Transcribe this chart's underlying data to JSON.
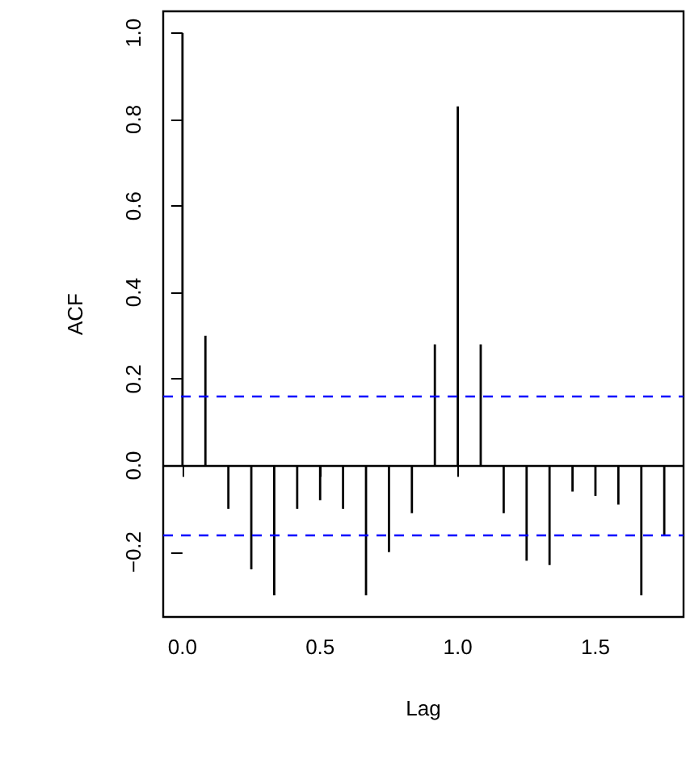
{
  "chart_data": {
    "type": "bar",
    "xlabel": "Lag",
    "ylabel": "ACF",
    "x": [
      0,
      0.0833,
      0.1667,
      0.25,
      0.3333,
      0.4167,
      0.5,
      0.5833,
      0.6667,
      0.75,
      0.8333,
      0.9167,
      1,
      1.0833,
      1.1667,
      1.25,
      1.3333,
      1.4167,
      1.5,
      1.5833,
      1.6667,
      1.75
    ],
    "values": [
      1,
      0.3,
      -0.1,
      -0.24,
      -0.3,
      -0.1,
      -0.08,
      -0.1,
      -0.3,
      -0.2,
      -0.11,
      0.28,
      0.83,
      0.28,
      -0.11,
      -0.22,
      -0.23,
      -0.06,
      -0.07,
      -0.09,
      -0.3,
      -0.16
    ],
    "color": "#000000",
    "xlim": [
      -0.07,
      1.82
    ],
    "xticks": [
      {
        "value": 0,
        "label": "0.0"
      },
      {
        "value": 0.5,
        "label": "0.5"
      },
      {
        "value": 1,
        "label": "1.0"
      },
      {
        "value": 1.5,
        "label": "1.5"
      }
    ],
    "ylim": [
      -0.35,
      1.05
    ],
    "yticks": [
      {
        "value": -0.2,
        "label": "−0.2"
      },
      {
        "value": 0,
        "label": "0.0"
      },
      {
        "value": 0.2,
        "label": "0.2"
      },
      {
        "value": 0.4,
        "label": "0.4"
      },
      {
        "value": 0.6,
        "label": "0.6"
      },
      {
        "value": 0.8,
        "label": "0.8"
      },
      {
        "value": 1,
        "label": "1.0"
      }
    ],
    "ref_lines": [
      {
        "axis": "y",
        "value": 0,
        "color": "#000000",
        "line_style": "solid"
      },
      {
        "axis": "y",
        "value": 0.164,
        "color": "#0000ff",
        "line_style": "dashed"
      },
      {
        "axis": "y",
        "value": -0.164,
        "color": "#0000ff",
        "line_style": "dashed"
      }
    ]
  }
}
